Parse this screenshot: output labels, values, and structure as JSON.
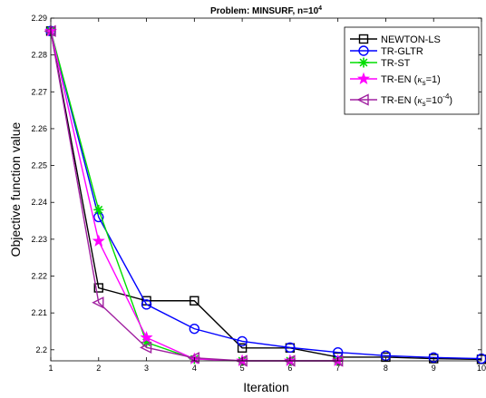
{
  "chart_data": {
    "type": "line",
    "title": "Problem: MINSURF, n=10",
    "title_superscript": "4",
    "xlabel": "Iteration",
    "ylabel": "Objective function value",
    "xlim": [
      1,
      10
    ],
    "ylim": [
      2.197,
      2.29
    ],
    "xticks": [
      1,
      2,
      3,
      4,
      5,
      6,
      7,
      8,
      9,
      10
    ],
    "yticks": [
      2.2,
      2.21,
      2.22,
      2.23,
      2.24,
      2.25,
      2.26,
      2.27,
      2.28,
      2.29
    ],
    "ytick_labels": [
      "2.2",
      "2.21",
      "2.22",
      "2.23",
      "2.24",
      "2.25",
      "2.26",
      "2.27",
      "2.28",
      "2.29"
    ],
    "legend_position": "top-right",
    "series": [
      {
        "name": "NEWTON-LS",
        "color": "#000000",
        "marker": "square",
        "x": [
          1,
          2,
          3,
          4,
          5,
          6,
          7,
          8,
          9,
          10
        ],
        "y": [
          2.2865,
          2.2168,
          2.2133,
          2.2133,
          2.2005,
          2.2005,
          2.198,
          2.198,
          2.1976,
          2.1974
        ]
      },
      {
        "name": "TR-GLTR",
        "color": "#0000ff",
        "marker": "circle",
        "x": [
          1,
          2,
          3,
          4,
          5,
          6,
          7,
          8,
          9,
          10
        ],
        "y": [
          2.2865,
          2.236,
          2.2123,
          2.2057,
          2.2023,
          2.2006,
          2.1993,
          2.1984,
          2.1979,
          2.1976
        ]
      },
      {
        "name": "TR-ST",
        "color": "#00dd00",
        "marker": "asterisk",
        "x": [
          1,
          2,
          3,
          4,
          5,
          6,
          7
        ],
        "y": [
          2.2865,
          2.238,
          2.202,
          2.1975,
          2.197,
          2.197,
          2.197
        ]
      },
      {
        "name": "TR-EN (κs=1)",
        "name_parts": [
          "TR-EN (",
          "κ",
          "s",
          "=1)"
        ],
        "color": "#ff00ff",
        "marker": "star",
        "x": [
          1,
          2,
          3,
          4,
          5,
          6,
          7
        ],
        "y": [
          2.2865,
          2.2295,
          2.2033,
          2.1975,
          2.197,
          2.197,
          2.197
        ]
      },
      {
        "name": "TR-EN (κs=10-4)",
        "name_parts": [
          "TR-EN (",
          "κ",
          "s",
          "=10",
          "-4",
          ")"
        ],
        "color": "#a020a0",
        "marker": "triangle-left",
        "x": [
          1,
          2,
          3,
          4,
          5,
          6,
          7
        ],
        "y": [
          2.2865,
          2.2128,
          2.2006,
          2.1978,
          2.197,
          2.197,
          2.197
        ]
      }
    ]
  }
}
